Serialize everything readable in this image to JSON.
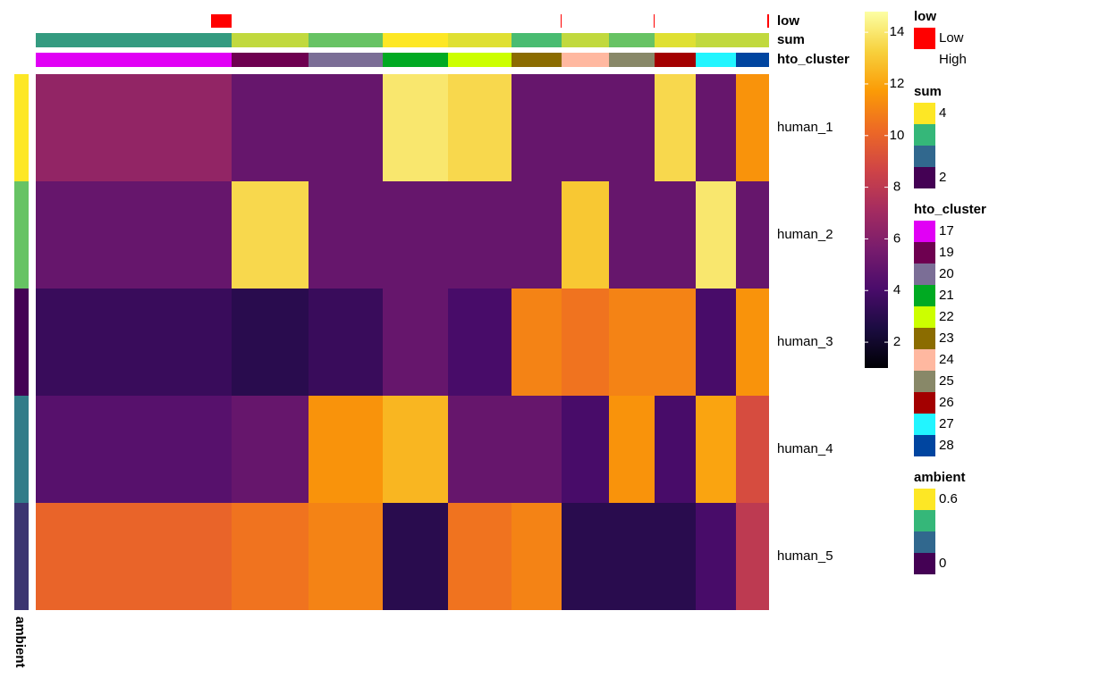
{
  "chart_data": {
    "type": "heatmap",
    "rows": [
      "human_1",
      "human_2",
      "human_3",
      "human_4",
      "human_5"
    ],
    "columns": [
      "17",
      "19",
      "20",
      "21",
      "22",
      "23",
      "24",
      "25",
      "26",
      "27",
      "28"
    ],
    "matrix": [
      [
        6.5,
        5,
        5,
        14,
        13.5,
        5,
        5,
        5,
        13.5,
        5,
        11.5
      ],
      [
        5,
        13.5,
        5,
        5,
        5,
        5,
        13,
        5,
        5,
        14,
        5
      ],
      [
        3.5,
        3,
        3.5,
        5,
        4,
        11,
        10.5,
        11,
        11,
        4,
        11.5
      ],
      [
        4.5,
        5,
        11.5,
        12.5,
        5,
        5,
        4,
        11.5,
        4,
        12,
        9
      ],
      [
        10,
        10.5,
        11,
        3,
        10.5,
        11,
        3,
        3,
        3,
        4,
        8
      ]
    ],
    "colorbar": {
      "lim": [
        1,
        14.8
      ],
      "ticks": [
        2,
        4,
        6,
        8,
        10,
        12,
        14
      ],
      "colors": [
        "#000004",
        "#1b0c41",
        "#4a0c6b",
        "#781c6d",
        "#a52c60",
        "#cf4446",
        "#ed6925",
        "#fb9b06",
        "#f7d13d",
        "#fcffa4"
      ]
    },
    "low": {
      "title": "low",
      "labels": [
        "Low",
        "High"
      ],
      "colors": [
        "#ff0000",
        "#ffffff"
      ]
    },
    "sum": {
      "title": "sum",
      "values": [
        3.1,
        3.8,
        3.5,
        4,
        3.9,
        3.4,
        3.8,
        3.5,
        3.9,
        3.8,
        3.8
      ],
      "lim": [
        2,
        4
      ],
      "ticks": [
        4,
        2
      ],
      "colors": [
        "#440154",
        "#31688e",
        "#35b779",
        "#fde725"
      ]
    },
    "hto_cluster": {
      "title": "hto_cluster",
      "colors": [
        "#e100f5",
        "#6e0050",
        "#7b6e96",
        "#00aa22",
        "#ccff00",
        "#8b6c00",
        "#ffb8a0",
        "#888868",
        "#a30000",
        "#22f5ff",
        "#0045a0"
      ]
    },
    "ambient": {
      "title": "ambient",
      "values": [
        0.6,
        0.45,
        0,
        0.25,
        0.1
      ],
      "lim": [
        0,
        0.6
      ],
      "ticks": [
        0.6,
        0
      ],
      "colors": [
        "#440154",
        "#31688e",
        "#35b779",
        "#fde725"
      ]
    }
  }
}
